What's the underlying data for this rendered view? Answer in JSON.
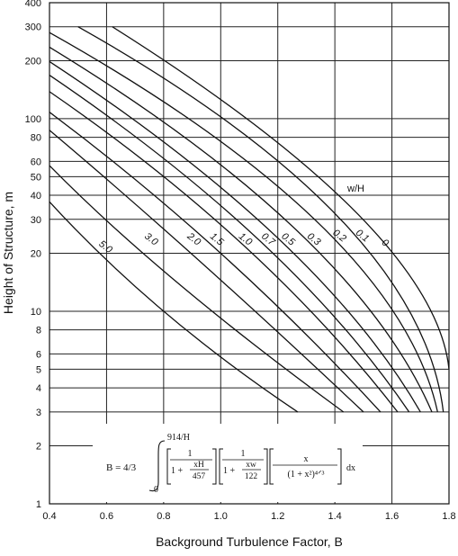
{
  "chart_data": {
    "type": "line",
    "xlabel": "Background Turbulence Factor, B",
    "ylabel": "Height of Structure, m",
    "xlim": [
      0.4,
      1.8
    ],
    "ylim": [
      1,
      400
    ],
    "yscale": "log",
    "grid": true,
    "x_ticks": [
      "0.4",
      "0.6",
      "0.8",
      "1.0",
      "1.2",
      "1.4",
      "1.6",
      "1.8"
    ],
    "y_ticks": [
      {
        "value": 1,
        "label": "1"
      },
      {
        "value": 2,
        "label": "2"
      },
      {
        "value": 3,
        "label": "3"
      },
      {
        "value": 4,
        "label": "4"
      },
      {
        "value": 5,
        "label": "5"
      },
      {
        "value": 6,
        "label": "6"
      },
      {
        "value": 8,
        "label": "8"
      },
      {
        "value": 10,
        "label": "10"
      },
      {
        "value": 20,
        "label": "20"
      },
      {
        "value": 30,
        "label": "30"
      },
      {
        "value": 40,
        "label": "40"
      },
      {
        "value": 50,
        "label": "50"
      },
      {
        "value": 60,
        "label": "60"
      },
      {
        "value": 80,
        "label": "80"
      },
      {
        "value": 100,
        "label": "100"
      },
      {
        "value": 200,
        "label": "200"
      },
      {
        "value": 300,
        "label": "300"
      },
      {
        "value": 400,
        "label": "400"
      }
    ],
    "legend_title": "w/H",
    "series": [
      {
        "name": "5.0",
        "label_at": [
          0.59,
          21
        ],
        "points": [
          [
            0.4,
            37
          ],
          [
            0.8,
            10
          ],
          [
            1.27,
            3
          ]
        ]
      },
      {
        "name": "3.0",
        "label_at": [
          0.75,
          23
        ],
        "points": [
          [
            0.4,
            57
          ],
          [
            0.85,
            14
          ],
          [
            1.43,
            3
          ]
        ]
      },
      {
        "name": "2.0",
        "label_at": [
          0.9,
          23
        ],
        "points": [
          [
            0.4,
            87
          ],
          [
            0.93,
            18
          ],
          [
            1.5,
            3
          ]
        ]
      },
      {
        "name": "1.5",
        "label_at": [
          0.98,
          23
        ],
        "points": [
          [
            0.4,
            108
          ],
          [
            1.0,
            20
          ],
          [
            1.56,
            3
          ]
        ]
      },
      {
        "name": "1.0",
        "label_at": [
          1.08,
          23
        ],
        "points": [
          [
            0.4,
            138
          ],
          [
            1.08,
            22
          ],
          [
            1.62,
            3
          ]
        ]
      },
      {
        "name": "0.7",
        "label_at": [
          1.16,
          23
        ],
        "points": [
          [
            0.4,
            168
          ],
          [
            1.14,
            23
          ],
          [
            1.66,
            3
          ]
        ]
      },
      {
        "name": "0.5",
        "label_at": [
          1.23,
          23
        ],
        "points": [
          [
            0.4,
            198
          ],
          [
            1.2,
            24
          ],
          [
            1.7,
            3
          ]
        ]
      },
      {
        "name": "0.3",
        "label_at": [
          1.32,
          23
        ],
        "points": [
          [
            0.4,
            235
          ],
          [
            1.27,
            26
          ],
          [
            1.74,
            3
          ]
        ]
      },
      {
        "name": "0.2",
        "label_at": [
          1.41,
          24
        ],
        "points": [
          [
            0.4,
            280
          ],
          [
            1.35,
            28
          ],
          [
            1.76,
            3
          ]
        ]
      },
      {
        "name": "0.1",
        "label_at": [
          1.49,
          24
        ],
        "points": [
          [
            0.5,
            300
          ],
          [
            1.42,
            30
          ],
          [
            1.78,
            3
          ]
        ]
      },
      {
        "name": "0",
        "label_at": [
          1.57,
          22
        ],
        "points": [
          [
            0.62,
            300
          ],
          [
            1.48,
            32
          ],
          [
            1.8,
            5
          ]
        ]
      }
    ],
    "formula": {
      "lhs": "B = 4/3",
      "upper_limit": "914/H",
      "lower_limit": "0",
      "f1_num": "1",
      "f1_den_a": "1 + ",
      "f1_frac_num": "xH",
      "f1_frac_den": "457",
      "f2_num": "1",
      "f2_den_a": "1 + ",
      "f2_frac_num": "xw",
      "f2_frac_den": "122",
      "f3_num": "x",
      "f3_den": "(1 + x²)⁴ᐟ³",
      "dx": "dx"
    }
  }
}
